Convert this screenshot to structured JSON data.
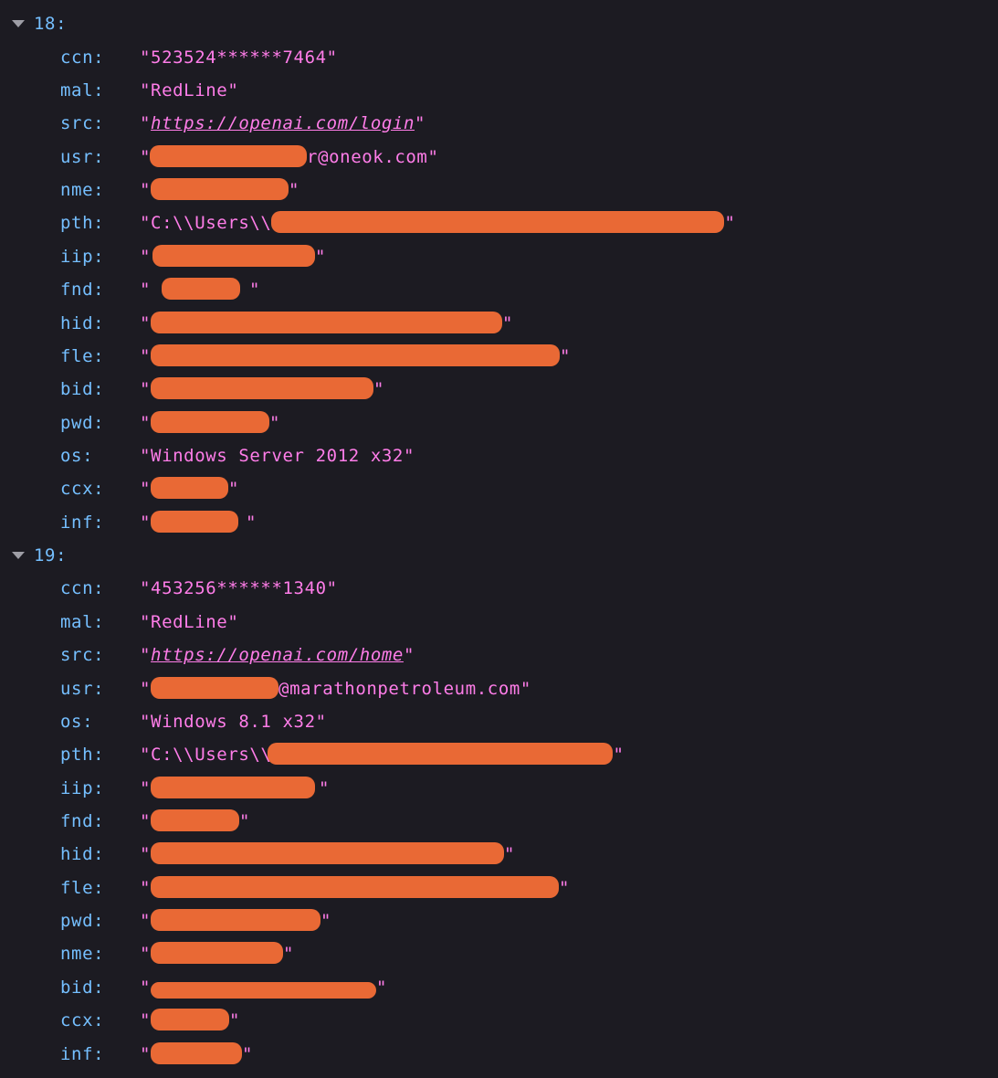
{
  "colors": {
    "background": "#1c1b22",
    "key": "#75bfff",
    "string": "#ff7de9",
    "redaction": "#e96935"
  },
  "icons": {
    "expand": "chevron-down-icon"
  },
  "records": [
    {
      "index": "18:",
      "fields": [
        {
          "key": "ccn:",
          "value": "523524******7464"
        },
        {
          "key": "mal:",
          "value": "RedLine"
        },
        {
          "key": "src:",
          "value": "https://openai.com/login",
          "link": true
        },
        {
          "key": "usr:",
          "value": "r@oneok.com",
          "redacted_prefix": true
        },
        {
          "key": "nme:",
          "value": "",
          "redacted": true
        },
        {
          "key": "pth:",
          "value": "C:\\\\Users\\\\",
          "redacted_suffix": true
        },
        {
          "key": "iip:",
          "value": "",
          "redacted": true
        },
        {
          "key": "fnd:",
          "value": "",
          "redacted": true
        },
        {
          "key": "hid:",
          "value": "",
          "redacted": true
        },
        {
          "key": "fle:",
          "value": "",
          "redacted": true
        },
        {
          "key": "bid:",
          "value": "",
          "redacted": true
        },
        {
          "key": "pwd:",
          "value": "",
          "redacted": true
        },
        {
          "key": "os:",
          "value": "Windows Server 2012 x32"
        },
        {
          "key": "ccx:",
          "value": "",
          "redacted": true
        },
        {
          "key": "inf:",
          "value": "",
          "redacted": true
        }
      ]
    },
    {
      "index": "19:",
      "fields": [
        {
          "key": "ccn:",
          "value": "453256******1340"
        },
        {
          "key": "mal:",
          "value": "RedLine"
        },
        {
          "key": "src:",
          "value": "https://openai.com/home",
          "link": true
        },
        {
          "key": "usr:",
          "value": "@marathonpetroleum.com",
          "redacted_prefix": true
        },
        {
          "key": "os:",
          "value": "Windows 8.1 x32"
        },
        {
          "key": "pth:",
          "value": "C:\\\\Users\\\\",
          "redacted_suffix": true
        },
        {
          "key": "iip:",
          "value": "",
          "redacted": true
        },
        {
          "key": "fnd:",
          "value": "",
          "redacted": true
        },
        {
          "key": "hid:",
          "value": "",
          "redacted": true
        },
        {
          "key": "fle:",
          "value": "",
          "redacted": true
        },
        {
          "key": "pwd:",
          "value": "",
          "redacted": true
        },
        {
          "key": "nme:",
          "value": "",
          "redacted": true
        },
        {
          "key": "bid:",
          "value": "",
          "redacted": true
        },
        {
          "key": "ccx:",
          "value": "",
          "redacted": true
        },
        {
          "key": "inf:",
          "value": "",
          "redacted": true
        }
      ]
    }
  ]
}
